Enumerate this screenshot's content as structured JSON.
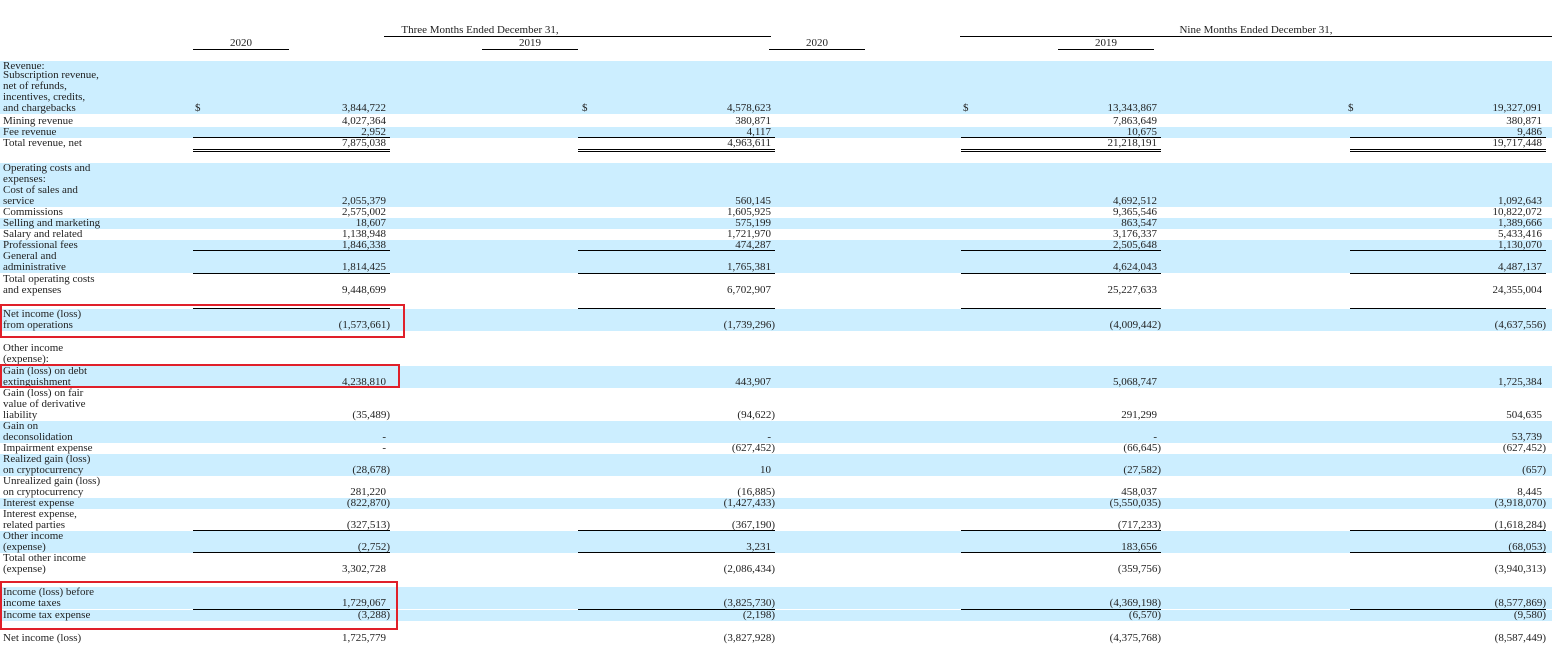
{
  "header": {
    "three_months": "Three Months Ended December 31,",
    "nine_months": "Nine Months Ended December 31,",
    "years": [
      "2020",
      "2019",
      "2020",
      "2019"
    ]
  },
  "currency_symbol": "$",
  "rows": [
    {
      "label": "Revenue:",
      "values": [
        "",
        "",
        "",
        ""
      ]
    },
    {
      "label": "Subscription revenue,\nnet of refunds,\nincentives, credits,\nand chargebacks",
      "values": [
        "3,844,722",
        "4,578,623",
        "13,343,867",
        "19,327,091"
      ]
    },
    {
      "label": "Mining revenue",
      "values": [
        "4,027,364",
        "380,871",
        "7,863,649",
        "380,871"
      ]
    },
    {
      "label": "Fee revenue",
      "values": [
        "2,952",
        "4,117",
        "10,675",
        "9,486"
      ]
    },
    {
      "label": "Total revenue, net",
      "values": [
        "7,875,038",
        "4,963,611",
        "21,218,191",
        "19,717,448"
      ]
    },
    {
      "label": "Operating costs and\nexpenses:",
      "values": [
        "",
        "",
        "",
        ""
      ]
    },
    {
      "label": "Cost of sales and\nservice",
      "values": [
        "2,055,379",
        "560,145",
        "4,692,512",
        "1,092,643"
      ]
    },
    {
      "label": "Commissions",
      "values": [
        "2,575,002",
        "1,605,925",
        "9,365,546",
        "10,822,072"
      ]
    },
    {
      "label": "Selling and marketing",
      "values": [
        "18,607",
        "575,199",
        "863,547",
        "1,389,666"
      ]
    },
    {
      "label": "Salary and related",
      "values": [
        "1,138,948",
        "1,721,970",
        "3,176,337",
        "5,433,416"
      ]
    },
    {
      "label": "Professional fees",
      "values": [
        "1,846,338",
        "474,287",
        "2,505,648",
        "1,130,070"
      ]
    },
    {
      "label": "General and\nadministrative",
      "values": [
        "1,814,425",
        "1,765,381",
        "4,624,043",
        "4,487,137"
      ]
    },
    {
      "label": "Total operating costs\nand expenses",
      "values": [
        "9,448,699",
        "6,702,907",
        "25,227,633",
        "24,355,004"
      ]
    },
    {
      "label": "Net income (loss)\nfrom operations",
      "values": [
        "(1,573,661)",
        "(1,739,296)",
        "(4,009,442)",
        "(4,637,556)"
      ]
    },
    {
      "label": "Other income\n(expense):",
      "values": [
        "",
        "",
        "",
        ""
      ]
    },
    {
      "label": "Gain (loss) on debt\nextinguishment",
      "values": [
        "4,238,810",
        "443,907",
        "5,068,747",
        "1,725,384"
      ]
    },
    {
      "label": "Gain (loss) on fair\nvalue of derivative\nliability",
      "values": [
        "(35,489)",
        "(94,622)",
        "291,299",
        "504,635"
      ]
    },
    {
      "label": "Gain on\ndeconsolidation",
      "values": [
        "-",
        "-",
        "-",
        "53,739"
      ]
    },
    {
      "label": "Impairment expense",
      "values": [
        "-",
        "(627,452)",
        "(66,645)",
        "(627,452)"
      ]
    },
    {
      "label": "Realized gain (loss)\non cryptocurrency",
      "values": [
        "(28,678)",
        "10",
        "(27,582)",
        "(657)"
      ]
    },
    {
      "label": "Unrealized gain (loss)\non cryptocurrency",
      "values": [
        "281,220",
        "(16,885)",
        "458,037",
        "8,445"
      ]
    },
    {
      "label": "Interest expense",
      "values": [
        "(822,870)",
        "(1,427,433)",
        "(5,550,035)",
        "(3,918,070)"
      ]
    },
    {
      "label": "Interest expense,\nrelated parties",
      "values": [
        "(327,513)",
        "(367,190)",
        "(717,233)",
        "(1,618,284)"
      ]
    },
    {
      "label": "Other income\n(expense)",
      "values": [
        "(2,752)",
        "3,231",
        "183,656",
        "(68,053)"
      ]
    },
    {
      "label": "Total other income\n(expense)",
      "values": [
        "3,302,728",
        "(2,086,434)",
        "(359,756)",
        "(3,940,313)"
      ]
    },
    {
      "label": "Income (loss) before\nincome taxes",
      "values": [
        "1,729,067",
        "(3,825,730)",
        "(4,369,198)",
        "(8,577,869)"
      ]
    },
    {
      "label": "Income tax expense",
      "values": [
        "(3,288)",
        "(2,198)",
        "(6,570)",
        "(9,580)"
      ]
    },
    {
      "label": "Net income (loss)",
      "values": [
        "1,725,779",
        "(3,827,928)",
        "(4,375,768)",
        "(8,587,449)"
      ]
    }
  ]
}
